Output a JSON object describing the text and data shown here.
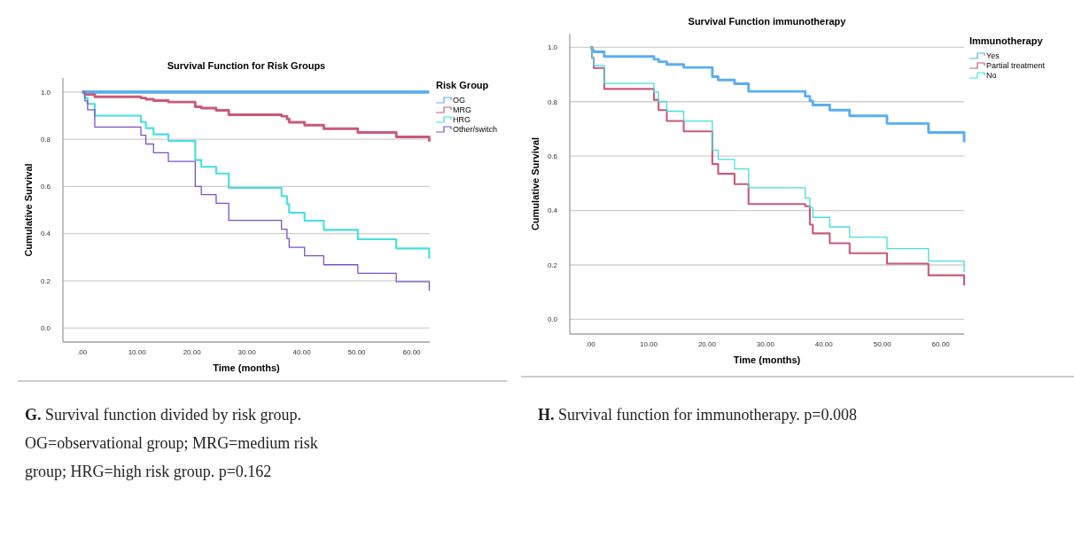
{
  "chart_data": [
    {
      "type": "step",
      "title": "Survival Function for Risk Groups",
      "xlabel": "Time (months)",
      "ylabel": "Cumulative Survival",
      "legend_title": "Risk Group",
      "legend": "right",
      "grid": "y",
      "xlim": [
        -3.5,
        63.3
      ],
      "ylim": [
        -0.06,
        1.06
      ],
      "xticks": [
        {
          "value": 0,
          "label": ".00"
        },
        {
          "value": 10,
          "label": "10.00"
        },
        {
          "value": 20,
          "label": "20.00"
        },
        {
          "value": 30,
          "label": "30.00"
        },
        {
          "value": 40,
          "label": "40.00"
        },
        {
          "value": 50,
          "label": "50.00"
        },
        {
          "value": 60,
          "label": "60.00"
        }
      ],
      "yticks": [
        {
          "value": 0,
          "label": "0.0"
        },
        {
          "value": 0.2,
          "label": "0.2"
        },
        {
          "value": 0.4,
          "label": "0.4"
        },
        {
          "value": 0.6,
          "label": "0.6"
        },
        {
          "value": 0.8,
          "label": "0.8"
        },
        {
          "value": 1,
          "label": "1.0"
        }
      ],
      "series": [
        {
          "name": "OG",
          "color": "#5aaef0",
          "x": [
            0,
            63.2
          ],
          "values": [
            1,
            1
          ]
        },
        {
          "name": "MRG",
          "color": "#c85a7a",
          "x": [
            0,
            0.5,
            2.3,
            10.7,
            11.6,
            13,
            15.7,
            20.6,
            21.7,
            24.4,
            26.7,
            36.3,
            37.3,
            37.7,
            40.5,
            44,
            50.2,
            57.2,
            63.2
          ],
          "values": [
            1,
            0.99,
            0.98,
            0.975,
            0.97,
            0.964,
            0.958,
            0.938,
            0.932,
            0.923,
            0.904,
            0.898,
            0.886,
            0.872,
            0.86,
            0.845,
            0.829,
            0.81,
            0.79
          ]
        },
        {
          "name": "HRG",
          "color": "#45dede",
          "x": [
            0,
            0.5,
            1,
            2.3,
            10.7,
            11.6,
            13,
            15.7,
            20.6,
            21.7,
            24.4,
            26.7,
            36.3,
            37.3,
            37.7,
            40.5,
            44,
            50.2,
            57.2,
            63.2
          ],
          "values": [
            1,
            0.975,
            0.95,
            0.9,
            0.873,
            0.847,
            0.821,
            0.793,
            0.712,
            0.683,
            0.655,
            0.594,
            0.559,
            0.525,
            0.489,
            0.455,
            0.416,
            0.376,
            0.337,
            0.294
          ]
        },
        {
          "name": "Other/switch",
          "color": "#7a52c4",
          "x": [
            0,
            0.5,
            1,
            2.3,
            10.7,
            11.6,
            13,
            15.7,
            20.6,
            21.7,
            24.4,
            26.7,
            36.3,
            37.3,
            37.7,
            40.5,
            44,
            50.2,
            57.2,
            63.2
          ],
          "values": [
            1,
            0.963,
            0.925,
            0.852,
            0.817,
            0.78,
            0.743,
            0.706,
            0.6,
            0.565,
            0.529,
            0.456,
            0.419,
            0.379,
            0.342,
            0.306,
            0.268,
            0.232,
            0.196,
            0.158
          ]
        }
      ],
      "annotations": [
        "G. Survival function divided by risk group. OG=observational group; MRG=medium risk group; HRG=high risk group. p=0.162"
      ]
    },
    {
      "type": "step",
      "title": "Survival Function immunotherapy",
      "xlabel": "Time (months)",
      "ylabel": "Cumulative Survival",
      "legend_title": "Immunotherapy",
      "legend": "right",
      "grid": "y",
      "xlim": [
        -3.5,
        64
      ],
      "ylim": [
        -0.054,
        1.05
      ],
      "xticks": [
        {
          "value": 0,
          "label": ".00"
        },
        {
          "value": 10,
          "label": "10.00"
        },
        {
          "value": 20,
          "label": "20.00"
        },
        {
          "value": 30,
          "label": "30.00"
        },
        {
          "value": 40,
          "label": "40.00"
        },
        {
          "value": 50,
          "label": "50.00"
        },
        {
          "value": 60,
          "label": "60.00"
        }
      ],
      "yticks": [
        {
          "value": 0,
          "label": "0.0"
        },
        {
          "value": 0.2,
          "label": "0.2"
        },
        {
          "value": 0.4,
          "label": "0.4"
        },
        {
          "value": 0.6,
          "label": "0.6"
        },
        {
          "value": 0.8,
          "label": "0.8"
        },
        {
          "value": 1,
          "label": "1.0"
        }
      ],
      "series": [
        {
          "name": "Yes",
          "color": "#5aaef0",
          "x": [
            0,
            0.3,
            0.6,
            2.4,
            10.9,
            11.7,
            13.1,
            16,
            20.9,
            21.9,
            24.7,
            27.1,
            36.8,
            37.6,
            38.1,
            41,
            44.4,
            50.8,
            57.9,
            64
          ],
          "values": [
            1,
            0.99,
            0.983,
            0.966,
            0.956,
            0.947,
            0.937,
            0.926,
            0.892,
            0.88,
            0.866,
            0.838,
            0.82,
            0.803,
            0.788,
            0.769,
            0.748,
            0.72,
            0.687,
            0.651
          ]
        },
        {
          "name": "Partial treatment",
          "color": "#c85a7a",
          "x": [
            0,
            0.3,
            0.6,
            2.4,
            10.9,
            11.7,
            13.1,
            16,
            20.9,
            21.9,
            24.7,
            27.1,
            36.8,
            37.6,
            38.1,
            41,
            44.4,
            50.8,
            57.9,
            64
          ],
          "values": [
            1,
            0.961,
            0.924,
            0.847,
            0.807,
            0.769,
            0.729,
            0.691,
            0.571,
            0.535,
            0.497,
            0.424,
            0.416,
            0.348,
            0.316,
            0.28,
            0.243,
            0.205,
            0.162,
            0.125
          ]
        },
        {
          "name": "No",
          "color": "#45dede",
          "x": [
            0,
            0.3,
            0.6,
            2.4,
            10.9,
            11.7,
            13.1,
            16,
            20.9,
            21.9,
            24.7,
            27.1,
            36.8,
            37.6,
            38.1,
            41,
            44.4,
            50.8,
            57.9,
            64
          ],
          "values": [
            1,
            0.96,
            0.933,
            0.867,
            0.835,
            0.8,
            0.765,
            0.729,
            0.622,
            0.588,
            0.553,
            0.484,
            0.446,
            0.411,
            0.375,
            0.34,
            0.302,
            0.26,
            0.214,
            0.174
          ]
        }
      ],
      "annotations": [
        "H. Survival function for immunotherapy. p=0.008"
      ]
    }
  ]
}
